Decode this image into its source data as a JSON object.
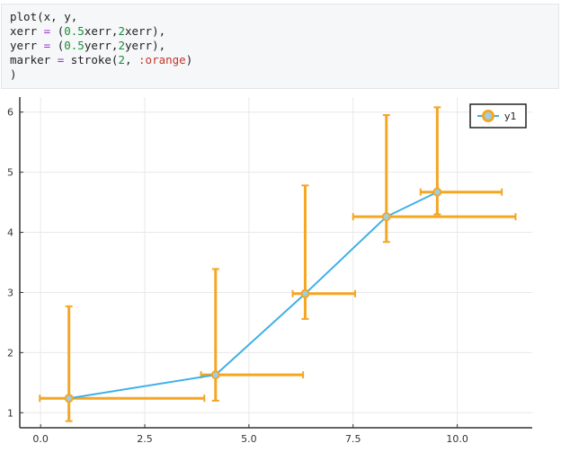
{
  "code": {
    "lines": [
      [
        {
          "t": "plot(x, y,",
          "c": ""
        }
      ],
      [
        {
          "t": "xerr ",
          "c": ""
        },
        {
          "t": "=",
          "c": "kw"
        },
        {
          "t": " (",
          "c": ""
        },
        {
          "t": "0.5",
          "c": "num"
        },
        {
          "t": "xerr,",
          "c": ""
        },
        {
          "t": "2",
          "c": "num"
        },
        {
          "t": "xerr),",
          "c": ""
        }
      ],
      [
        {
          "t": "yerr ",
          "c": ""
        },
        {
          "t": "=",
          "c": "kw"
        },
        {
          "t": " (",
          "c": ""
        },
        {
          "t": "0.5",
          "c": "num"
        },
        {
          "t": "yerr,",
          "c": ""
        },
        {
          "t": "2",
          "c": "num"
        },
        {
          "t": "yerr),",
          "c": ""
        }
      ],
      [
        {
          "t": "marker ",
          "c": ""
        },
        {
          "t": "=",
          "c": "kw"
        },
        {
          "t": " stroke(",
          "c": ""
        },
        {
          "t": "2",
          "c": "num"
        },
        {
          "t": ", ",
          "c": ""
        },
        {
          "t": ":orange",
          "c": "sym"
        },
        {
          "t": ")",
          "c": ""
        }
      ],
      [
        {
          "t": ")",
          "c": ""
        }
      ]
    ]
  },
  "colors": {
    "line": "#3fb0e8",
    "marker_stroke": "#f5a623",
    "marker_fill": "#9bd0e8",
    "grid": "#e8e8e8",
    "axis": "#333333"
  },
  "chart_data": {
    "type": "line",
    "title": "",
    "xlabel": "",
    "ylabel": "",
    "xlim": [
      -0.5,
      11.8
    ],
    "ylim": [
      0.75,
      6.25
    ],
    "xticks": [
      0.0,
      2.5,
      5.0,
      7.5,
      10.0
    ],
    "xtick_labels": [
      "0.0",
      "2.5",
      "5.0",
      "7.5",
      "10.0"
    ],
    "yticks": [
      1,
      2,
      3,
      4,
      5,
      6
    ],
    "ytick_labels": [
      "1",
      "2",
      "3",
      "4",
      "5",
      "6"
    ],
    "grid": true,
    "legend": {
      "position": "top-right",
      "entries": [
        "y1"
      ]
    },
    "series": [
      {
        "name": "y1",
        "x": [
          0.68,
          4.2,
          6.35,
          8.3,
          9.52
        ],
        "y": [
          1.24,
          1.63,
          2.98,
          4.26,
          4.67
        ],
        "xerr_low": [
          0.7,
          0.35,
          0.3,
          0.8,
          0.4
        ],
        "xerr_high": [
          3.25,
          2.1,
          1.2,
          3.1,
          1.55
        ],
        "yerr_low": [
          0.38,
          0.43,
          0.42,
          0.42,
          0.37
        ],
        "yerr_high": [
          1.53,
          1.76,
          1.8,
          1.69,
          1.41
        ]
      }
    ]
  }
}
